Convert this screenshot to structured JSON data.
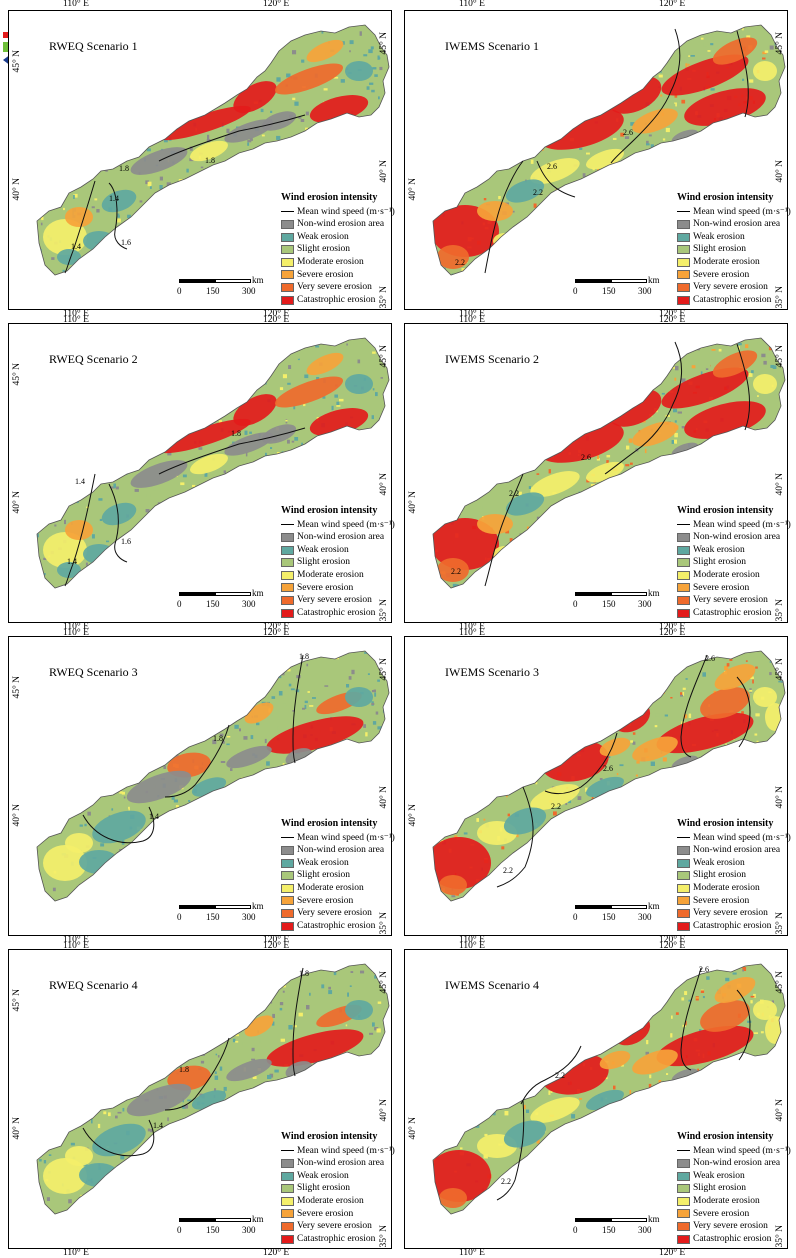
{
  "axes": {
    "lon_110": "110° E",
    "lon_120": "120° E",
    "lat_45": "45° N",
    "lat_40": "40° N",
    "lat_35": "35° N"
  },
  "legend": {
    "title": "Wind erosion intensity",
    "line_label": "Mean wind speed (m·s⁻¹)",
    "classes": [
      {
        "label": "Non-wind erosion area",
        "color": "#8c8c8c"
      },
      {
        "label": "Weak erosion",
        "color": "#5fa8a0"
      },
      {
        "label": "Slight erosion",
        "color": "#a9c77a"
      },
      {
        "label": "Moderate erosion",
        "color": "#f4ef6a"
      },
      {
        "label": "Severe erosion",
        "color": "#f6a33a"
      },
      {
        "label": "Very severe erosion",
        "color": "#ef6a2c"
      },
      {
        "label": "Catastrophic erosion",
        "color": "#e31b1b"
      }
    ]
  },
  "scale_bar": {
    "zero": "0",
    "mid": "150",
    "end": "300",
    "unit": "km"
  },
  "panels": [
    {
      "title": "RWEQ Scenario 1",
      "model": "RWEQ",
      "contours": [
        "1.8",
        "1.4",
        "1.4",
        "1.6",
        "1.8"
      ]
    },
    {
      "title": "IWEMS Scenario 1",
      "model": "IWEMS",
      "contours": [
        "2.6",
        "2.2",
        "2.6",
        "2.2"
      ]
    },
    {
      "title": "RWEQ Scenario 2",
      "model": "RWEQ",
      "contours": [
        "1.8",
        "1.4",
        "1.4",
        "1.6"
      ]
    },
    {
      "title": "IWEMS Scenario 2",
      "model": "IWEMS",
      "contours": [
        "2.6",
        "2.2",
        "2.2"
      ]
    },
    {
      "title": "RWEQ Scenario 3",
      "model": "RWEQ",
      "contours": [
        "1.8",
        "1.8",
        "1.4"
      ]
    },
    {
      "title": "IWEMS Scenario 3",
      "model": "IWEMS",
      "contours": [
        "2.6",
        "2.6",
        "2.2",
        "2.2"
      ]
    },
    {
      "title": "RWEQ Scenario 4",
      "model": "RWEQ",
      "contours": [
        "1.8",
        "1.8",
        "1.4"
      ]
    },
    {
      "title": "IWEMS Scenario 4",
      "model": "IWEMS",
      "contours": [
        "2.6",
        "2.2",
        "2.2"
      ]
    }
  ],
  "colors": {
    "rweq_base": "#a9c77a",
    "iwems_base": "#a9c77a"
  }
}
